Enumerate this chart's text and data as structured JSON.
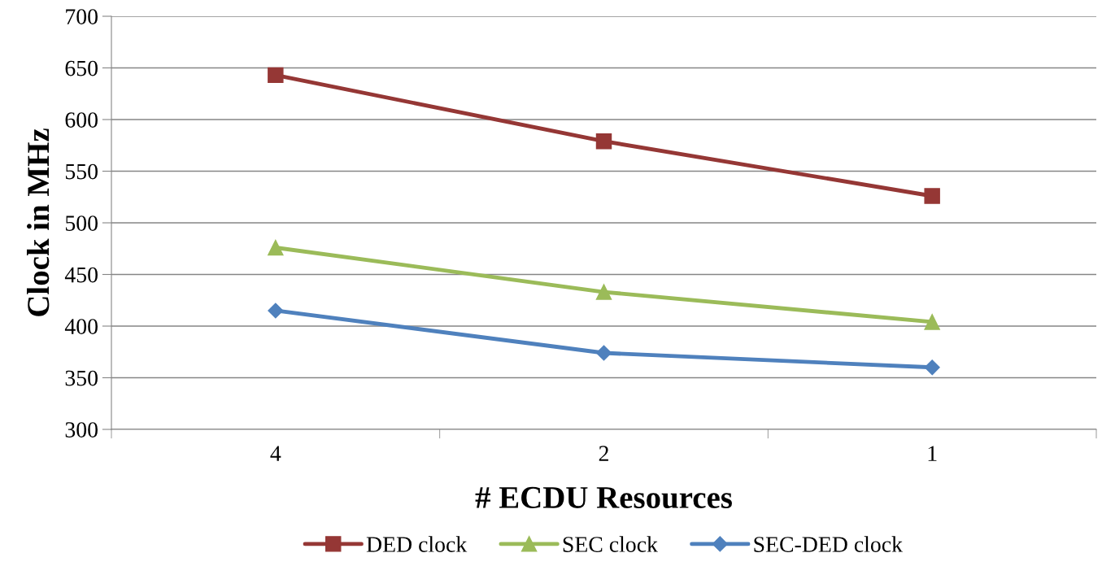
{
  "chart_data": {
    "type": "line",
    "xlabel": "# ECDU Resources",
    "ylabel": "Clock in MHz",
    "categories": [
      "4",
      "2",
      "1"
    ],
    "series": [
      {
        "name": "DED clock",
        "color": "#953735",
        "marker": "square",
        "values": [
          643,
          579,
          526
        ]
      },
      {
        "name": "SEC clock",
        "color": "#9bbb59",
        "marker": "triangle",
        "values": [
          476,
          433,
          404
        ]
      },
      {
        "name": "SEC-DED clock",
        "color": "#4f81bd",
        "marker": "diamond",
        "values": [
          415,
          374,
          360
        ]
      }
    ],
    "ylim": [
      300,
      700
    ],
    "yticks": [
      300,
      350,
      400,
      450,
      500,
      550,
      600,
      650,
      700
    ],
    "grid": "y",
    "legend": "bottom",
    "line_style": "solid"
  }
}
